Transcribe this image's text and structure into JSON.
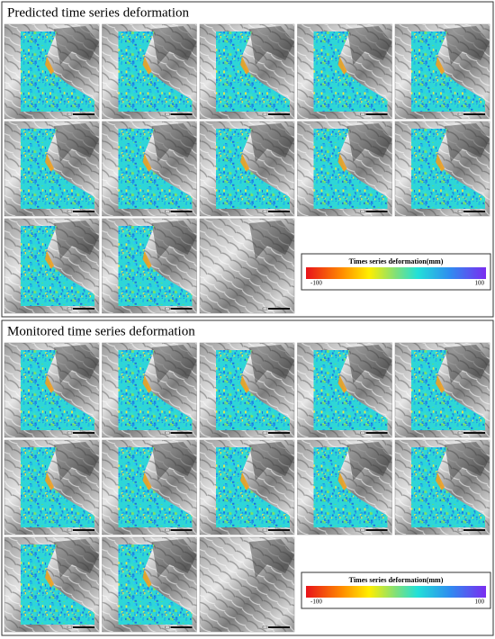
{
  "panels": [
    {
      "title": "Predicted time series deformation",
      "colorbar": {
        "label": "Times series deformation(mm)",
        "min": -100,
        "max": 100
      }
    },
    {
      "title": "Monitored time series deformation",
      "colorbar": {
        "label": "Times series deformation(mm)",
        "min": -100,
        "max": 100
      }
    }
  ]
}
